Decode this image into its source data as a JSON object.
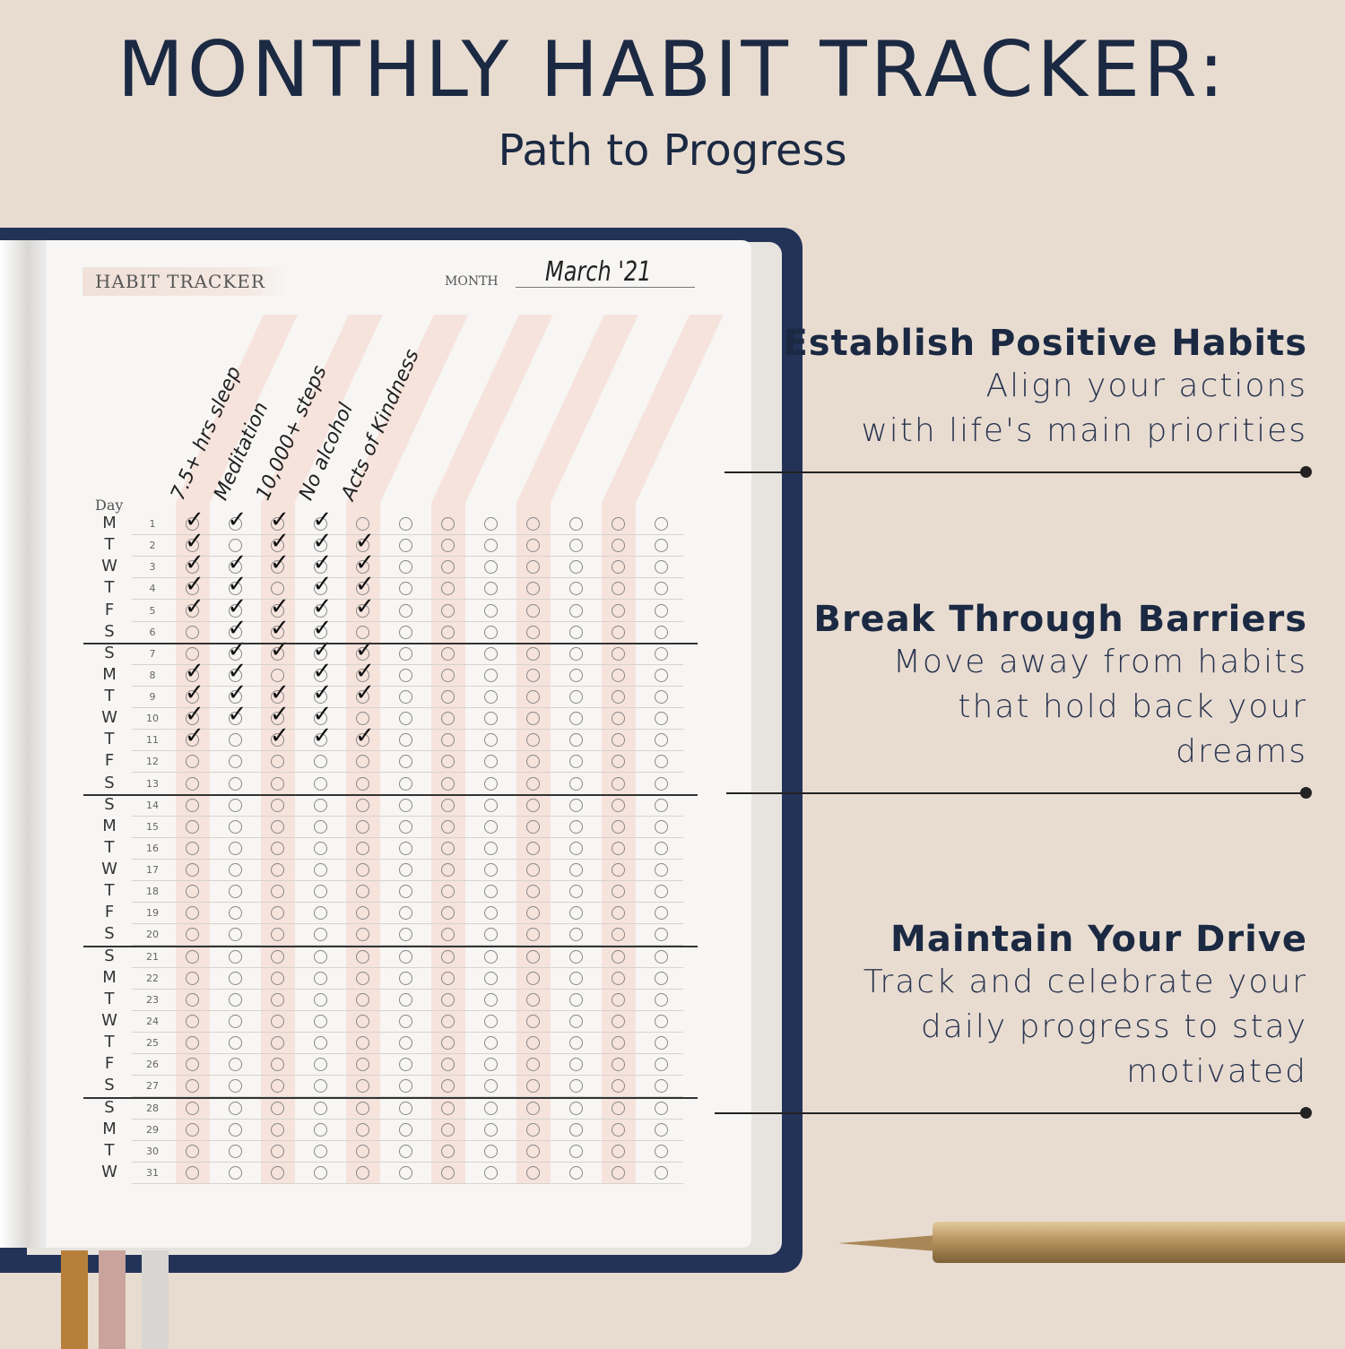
{
  "title": "MONTHLY HABIT TRACKER:",
  "subtitle": "Path to Progress",
  "tracker": {
    "heading": "HABIT TRACKER",
    "month_label": "MONTH",
    "month_value": "March '21",
    "day_label": "Day",
    "habits": [
      "7.5+ hrs sleep",
      "Meditation",
      "10,000+ steps",
      "No alcohol",
      "Acts of Kindness",
      "",
      "",
      "",
      "",
      "",
      "",
      ""
    ],
    "weekdays": [
      "M",
      "T",
      "W",
      "T",
      "F",
      "S",
      "S",
      "M",
      "T",
      "W",
      "T",
      "F",
      "S",
      "S",
      "M",
      "T",
      "W",
      "T",
      "F",
      "S",
      "S",
      "M",
      "T",
      "W",
      "T",
      "F",
      "S",
      "S",
      "M",
      "T",
      "W"
    ],
    "checks": [
      [
        1,
        1,
        1,
        1,
        0
      ],
      [
        1,
        0,
        1,
        1,
        1
      ],
      [
        1,
        1,
        1,
        1,
        1
      ],
      [
        1,
        1,
        0,
        1,
        1
      ],
      [
        1,
        1,
        1,
        1,
        1
      ],
      [
        0,
        1,
        1,
        1,
        0
      ],
      [
        0,
        1,
        1,
        1,
        1
      ],
      [
        1,
        1,
        0,
        1,
        1
      ],
      [
        1,
        1,
        1,
        1,
        1
      ],
      [
        1,
        1,
        1,
        1,
        0
      ],
      [
        1,
        0,
        1,
        1,
        1
      ]
    ]
  },
  "features": [
    {
      "title": "Establish Positive Habits",
      "lines": [
        "Align your actions",
        "with life's main priorities"
      ]
    },
    {
      "title": "Break Through Barriers",
      "lines": [
        "Move away from habits",
        "that hold back your",
        "dreams"
      ]
    },
    {
      "title": "Maintain Your Drive",
      "lines": [
        "Track and celebrate your",
        "daily progress to stay",
        "motivated"
      ]
    }
  ],
  "colors": {
    "navy": "#1b2942",
    "stripe": "#f6e3dc",
    "background": "#e8dcd1"
  }
}
